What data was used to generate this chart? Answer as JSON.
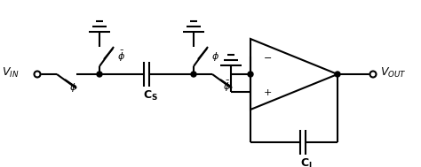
{
  "bg_color": "#ffffff",
  "line_color": "#000000",
  "fig_width": 4.74,
  "fig_height": 1.89,
  "dpi": 100
}
